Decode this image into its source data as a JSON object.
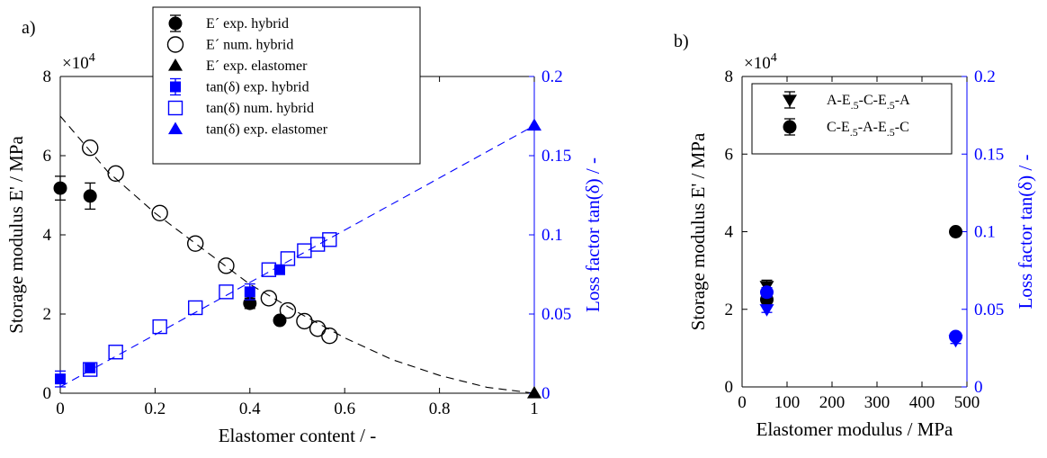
{
  "colors": {
    "left_axis": "#000000",
    "right_axis": "#0000ff",
    "hybrid_series": "#000000",
    "tan_series": "#0000ff"
  },
  "chart_data": [
    {
      "panel_label": "a)",
      "type": "scatter",
      "xlabel": "Elastomer content / -",
      "ylabel_left": "Storage modulus E' / MPa",
      "ylabel_right": "Loss factor tan(δ)  / -",
      "left_multiplier": "×10",
      "left_multiplier_exp": "4",
      "xlim": [
        0,
        1
      ],
      "ylim_left": [
        0,
        80000
      ],
      "ylim_right": [
        0,
        0.2
      ],
      "xticks": [
        "0",
        "0.2",
        "0.4",
        "0.6",
        "0.8",
        "1"
      ],
      "xtick_values": [
        0,
        0.2,
        0.4,
        0.6,
        0.8,
        1
      ],
      "yticks_left": [
        "0",
        "2",
        "4",
        "6",
        "8"
      ],
      "ytick_values_left": [
        0,
        20000,
        40000,
        60000,
        80000
      ],
      "yticks_right": [
        "0",
        "0.05",
        "0.1",
        "0.15",
        "0.2"
      ],
      "ytick_values_right": [
        0,
        0.05,
        0.1,
        0.15,
        0.2
      ],
      "legend_position": "top-center",
      "series": [
        {
          "name": "E´ exp. hybrid",
          "axis": "left",
          "marker": "filled-circle",
          "color": "#000000",
          "x": [
            0,
            0.063,
            0.4,
            0.463
          ],
          "y": [
            51800,
            49800,
            22700,
            18400
          ],
          "err": [
            3000,
            3300,
            1300,
            800
          ]
        },
        {
          "name": "E´ num. hybrid",
          "axis": "left",
          "marker": "open-circle",
          "color": "#000000",
          "x": [
            0.063,
            0.117,
            0.21,
            0.285,
            0.35,
            0.44,
            0.48,
            0.515,
            0.543,
            0.568
          ],
          "y": [
            62000,
            55500,
            45500,
            37800,
            32200,
            24000,
            20900,
            18200,
            16300,
            14500
          ]
        },
        {
          "name": "E´ exp. elastomer",
          "axis": "left",
          "marker": "filled-triangle",
          "color": "#000000",
          "x": [
            1
          ],
          "y": [
            0
          ]
        },
        {
          "name": "tan(δ) exp. hybrid",
          "axis": "right",
          "marker": "filled-square",
          "color": "#0000ff",
          "x": [
            0,
            0.063,
            0.4,
            0.463
          ],
          "y": [
            0.009,
            0.016,
            0.064,
            0.078
          ],
          "err": [
            0.005,
            0.002,
            0.005,
            0.002
          ]
        },
        {
          "name": "tan(δ)  num. hybrid",
          "axis": "right",
          "marker": "open-square",
          "color": "#0000ff",
          "x": [
            0.063,
            0.117,
            0.21,
            0.285,
            0.35,
            0.44,
            0.48,
            0.515,
            0.543,
            0.568
          ],
          "y": [
            0.015,
            0.026,
            0.042,
            0.054,
            0.064,
            0.078,
            0.085,
            0.09,
            0.094,
            0.097
          ]
        },
        {
          "name": "tan(δ)  exp. elastomer",
          "axis": "right",
          "marker": "filled-triangle",
          "color": "#0000ff",
          "x": [
            1
          ],
          "y": [
            0.169
          ]
        }
      ],
      "fit_curves": [
        {
          "axis": "left",
          "color": "#000000",
          "style": "dashed",
          "x": [
            0,
            0.1,
            0.2,
            0.3,
            0.4,
            0.5,
            0.6,
            0.7,
            0.8,
            0.9,
            1.0
          ],
          "y": [
            70000,
            56000,
            45500,
            36500,
            27500,
            20500,
            14000,
            8500,
            4500,
            1500,
            0
          ]
        },
        {
          "axis": "right",
          "color": "#0000ff",
          "style": "dashed",
          "x": [
            0,
            1
          ],
          "y": [
            0.004,
            0.169
          ]
        }
      ]
    },
    {
      "panel_label": "b)",
      "type": "scatter",
      "xlabel": "Elastomer modulus / MPa",
      "ylabel_left": "Storage modulus E' / MPa",
      "ylabel_right": "Loss factor tan(δ)  / -",
      "left_multiplier": "×10",
      "left_multiplier_exp": "4",
      "xlim": [
        0,
        500
      ],
      "ylim_left": [
        0,
        80000
      ],
      "ylim_right": [
        0,
        0.2
      ],
      "xticks": [
        "0",
        "100",
        "200",
        "300",
        "400",
        "500"
      ],
      "xtick_values": [
        0,
        100,
        200,
        300,
        400,
        500
      ],
      "yticks_left": [
        "0",
        "2",
        "4",
        "6",
        "8"
      ],
      "ytick_values_left": [
        0,
        20000,
        40000,
        60000,
        80000
      ],
      "yticks_right": [
        "0",
        "0.05",
        "0.1",
        "0.15",
        "0.2"
      ],
      "ytick_values_right": [
        0,
        0.05,
        0.1,
        0.15,
        0.2
      ],
      "legend_position": "top-right",
      "series": [
        {
          "name": "A-E.5-C-E.5-A",
          "legend_parts": [
            "A-E",
            ".5",
            "-C-E",
            ".5",
            "-A"
          ],
          "axis": "left",
          "marker": "filled-down-triangle",
          "color": "#000000",
          "x": [
            55
          ],
          "y": [
            26000
          ],
          "err": [
            1500
          ]
        },
        {
          "name": "C-E.5-A-E.5-C",
          "legend_parts": [
            "C-E",
            ".5",
            "-A-E",
            ".5",
            "-C"
          ],
          "axis": "left",
          "marker": "filled-circle",
          "color": "#000000",
          "x": [
            55,
            475
          ],
          "y": [
            22500,
            40000
          ],
          "err": [
            1000,
            800
          ]
        },
        {
          "name": "",
          "axis": "right",
          "marker": "filled-down-triangle",
          "color": "#0000ff",
          "x": [
            55,
            475
          ],
          "y": [
            0.05,
            0.03
          ],
          "err": [
            0.002,
            0.002
          ]
        },
        {
          "name": "",
          "axis": "right",
          "marker": "filled-circle",
          "color": "#0000ff",
          "x": [
            55,
            475
          ],
          "y": [
            0.061,
            0.0325
          ],
          "err": [
            0.003,
            0.002
          ]
        }
      ]
    }
  ]
}
